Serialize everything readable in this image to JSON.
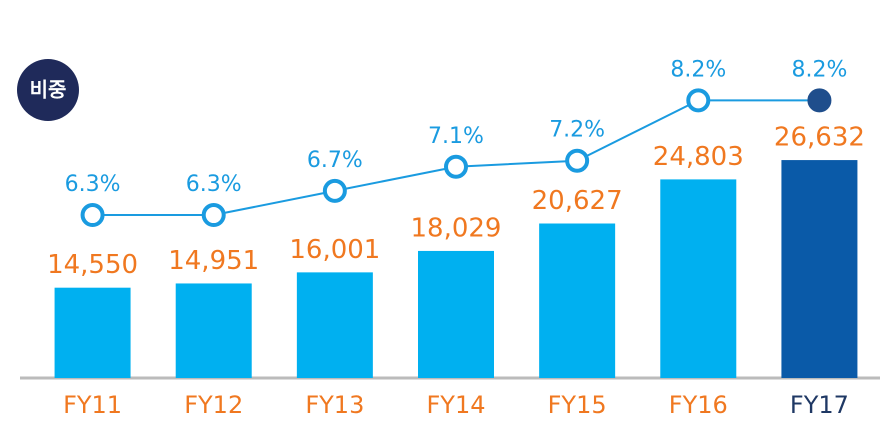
{
  "badge": "비중",
  "chart_data": {
    "type": "bar-line",
    "categories": [
      "FY11",
      "FY12",
      "FY13",
      "FY14",
      "FY15",
      "FY16",
      "FY17"
    ],
    "category_colors": [
      "#f07820",
      "#f07820",
      "#f07820",
      "#f07820",
      "#f07820",
      "#f07820",
      "#1f3864"
    ],
    "bars": {
      "values": [
        14550,
        14951,
        16001,
        18029,
        20627,
        24803,
        26632
      ],
      "value_labels": [
        "14,550",
        "14,951",
        "16,001",
        "18,029",
        "20,627",
        "24,803",
        "26,632"
      ],
      "colors": [
        "#00b0f0",
        "#00b0f0",
        "#00b0f0",
        "#00b0f0",
        "#00b0f0",
        "#00b0f0",
        "#0a5aa8"
      ],
      "label_color": "#f07820"
    },
    "line": {
      "values": [
        6.3,
        6.3,
        6.7,
        7.1,
        7.2,
        8.2,
        8.2
      ],
      "value_labels": [
        "6.3%",
        "6.3%",
        "6.7%",
        "7.1%",
        "7.2%",
        "8.2%",
        "8.2%"
      ],
      "color": "#1a9be0",
      "label_color": "#1a9be0",
      "last_point_color": "#1f4e8c",
      "axis": "y2"
    },
    "ylim": [
      6000,
      38000
    ],
    "y2lim": [
      3.6,
      9.2
    ]
  }
}
